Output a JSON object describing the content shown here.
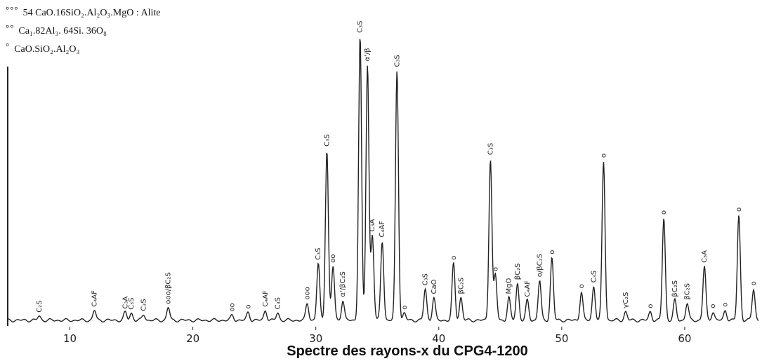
{
  "legend": [
    {
      "mark": "°°°",
      "text": "54 CaO.16SiO₂.Al₂O₃.MgO : Alite"
    },
    {
      "mark": "°°",
      "text": "Ca₁.82Al₃. 64Si. 36O₈"
    },
    {
      "mark": "°",
      "text": "CaO.SiO₂.Al₂O₃"
    }
  ],
  "chart_data": {
    "type": "line",
    "title": "Spectre des rayons-x du CPG4-1200",
    "xlabel": "",
    "ylabel": "",
    "xlim": [
      5,
      66
    ],
    "ylim": [
      0,
      100
    ],
    "x_ticks": [
      "10",
      "20",
      "30",
      "40",
      "50",
      "60"
    ],
    "grid": false,
    "legend_position": "top-left",
    "color": "#222222",
    "baseline": 2,
    "peaks": [
      {
        "x": 7.5,
        "height": 1.5,
        "label": "C₂S"
      },
      {
        "x": 12.0,
        "height": 3.5,
        "label": "C₄AF"
      },
      {
        "x": 14.5,
        "height": 2.8,
        "label": "C₃A"
      },
      {
        "x": 15.0,
        "height": 2.5,
        "label": "C₃S"
      },
      {
        "x": 16.0,
        "height": 2.0,
        "label": "C₃S"
      },
      {
        "x": 18.0,
        "height": 4.5,
        "label": "ooo/βC₂S"
      },
      {
        "x": 23.2,
        "height": 1.8,
        "label": "oo"
      },
      {
        "x": 24.5,
        "height": 2.8,
        "label": "o"
      },
      {
        "x": 25.9,
        "height": 3.5,
        "label": "C₄AF"
      },
      {
        "x": 26.9,
        "height": 2.6,
        "label": "C₃S"
      },
      {
        "x": 29.3,
        "height": 6.0,
        "label": "ooo"
      },
      {
        "x": 30.2,
        "height": 20.0,
        "label": "C₃S"
      },
      {
        "x": 30.9,
        "height": 60.0,
        "label": "C₃S"
      },
      {
        "x": 31.4,
        "height": 19.0,
        "label": "oo"
      },
      {
        "x": 32.2,
        "height": 7.0,
        "label": "α'/βC₂S"
      },
      {
        "x": 33.6,
        "height": 100.0,
        "label": "C₃S"
      },
      {
        "x": 34.2,
        "height": 90.0,
        "label": "α'/β"
      },
      {
        "x": 34.6,
        "height": 30.0,
        "label": "C₃A"
      },
      {
        "x": 35.4,
        "height": 28.0,
        "label": "C₄AF"
      },
      {
        "x": 36.6,
        "height": 88.0,
        "label": "C₃S"
      },
      {
        "x": 37.2,
        "height": 2.5,
        "label": "o"
      },
      {
        "x": 38.9,
        "height": 11.0,
        "label": "C₃S"
      },
      {
        "x": 39.6,
        "height": 8.0,
        "label": "CaO"
      },
      {
        "x": 41.2,
        "height": 20.0,
        "label": "o"
      },
      {
        "x": 41.8,
        "height": 8.0,
        "label": "βC₂S"
      },
      {
        "x": 44.2,
        "height": 57.0,
        "label": "C₃S"
      },
      {
        "x": 44.6,
        "height": 16.0,
        "label": "o"
      },
      {
        "x": 45.7,
        "height": 8.0,
        "label": "MgO"
      },
      {
        "x": 46.4,
        "height": 13.0,
        "label": "βC₂S"
      },
      {
        "x": 47.2,
        "height": 7.0,
        "label": "C₄AF"
      },
      {
        "x": 48.2,
        "height": 14.0,
        "label": "o/βC₂S"
      },
      {
        "x": 49.2,
        "height": 22.0,
        "label": "o"
      },
      {
        "x": 51.6,
        "height": 10.0,
        "label": "o"
      },
      {
        "x": 52.6,
        "height": 12.0,
        "label": "C₃S"
      },
      {
        "x": 53.4,
        "height": 56.0,
        "label": "o"
      },
      {
        "x": 55.2,
        "height": 3.0,
        "label": "γC₂S"
      },
      {
        "x": 57.2,
        "height": 3.0,
        "label": "o"
      },
      {
        "x": 58.3,
        "height": 36.0,
        "label": "o"
      },
      {
        "x": 59.2,
        "height": 7.0,
        "label": "βC₂S"
      },
      {
        "x": 60.2,
        "height": 6.0,
        "label": "βC₂S"
      },
      {
        "x": 61.6,
        "height": 19.0,
        "label": "C₃A"
      },
      {
        "x": 62.3,
        "height": 3.0,
        "label": "o"
      },
      {
        "x": 63.3,
        "height": 3.5,
        "label": "o"
      },
      {
        "x": 64.4,
        "height": 37.0,
        "label": "o"
      },
      {
        "x": 65.6,
        "height": 11.0,
        "label": "o"
      }
    ]
  }
}
